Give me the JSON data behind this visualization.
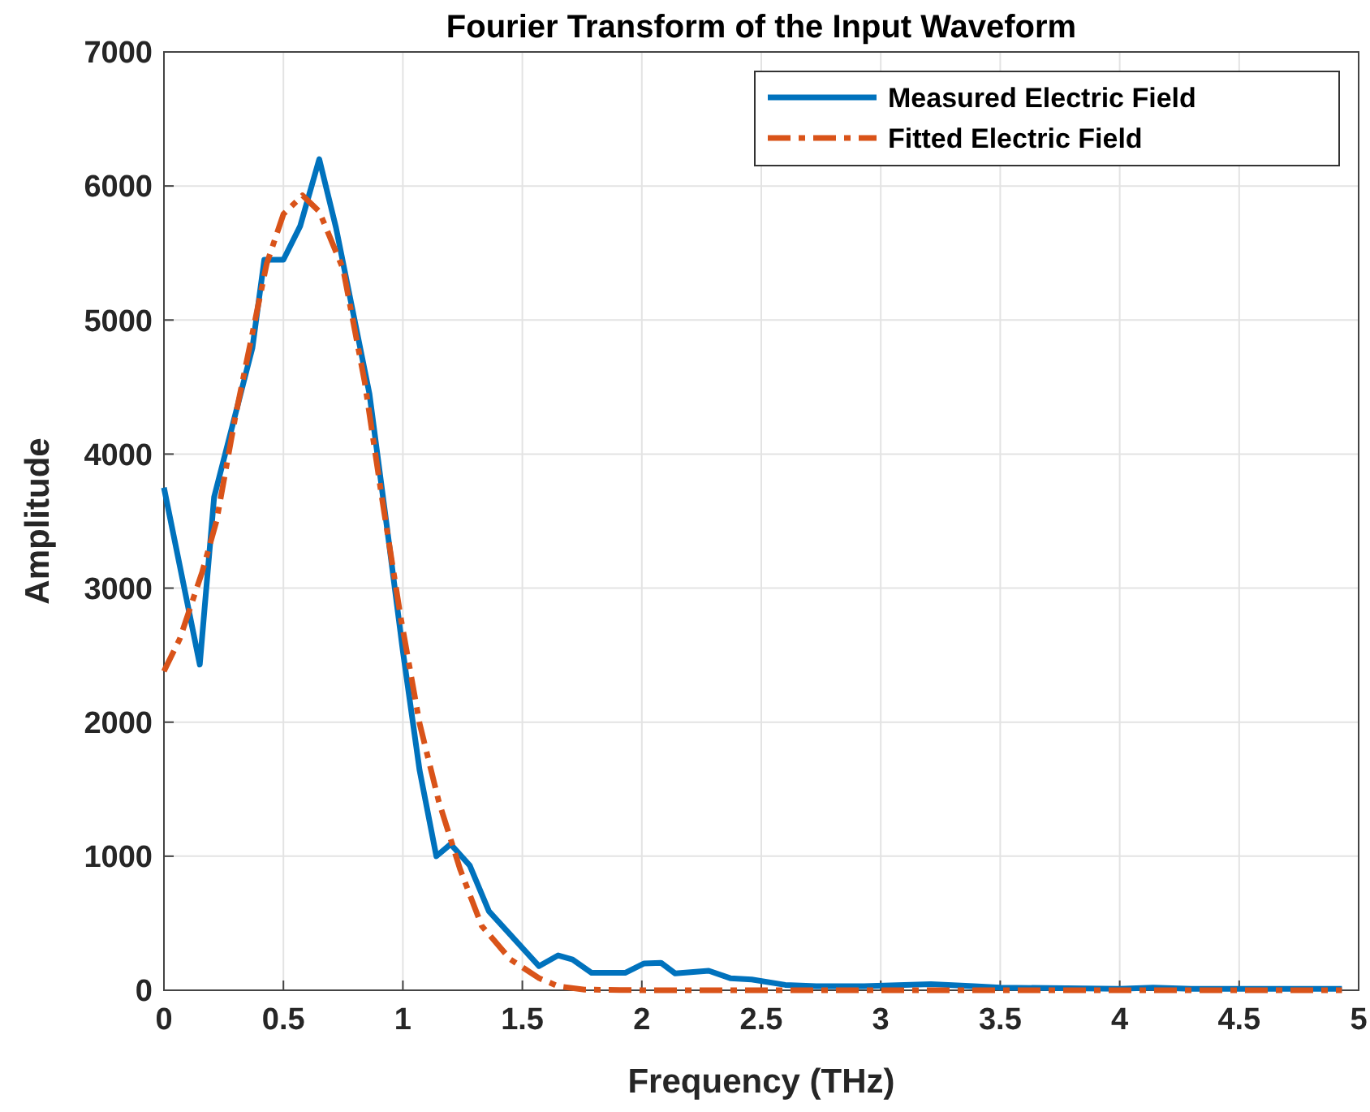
{
  "chart_data": {
    "type": "line",
    "title": "Fourier Transform of the Input Waveform",
    "xlabel": "Frequency (THz)",
    "ylabel": "Amplitude",
    "xlim": [
      0,
      5
    ],
    "xticks": [
      0,
      0.5,
      1,
      1.5,
      2,
      2.5,
      3,
      3.5,
      4,
      4.5,
      5
    ],
    "ylim": [
      0,
      7000
    ],
    "yticks": [
      0,
      1000,
      2000,
      3000,
      4000,
      5000,
      6000,
      7000
    ],
    "grid": true,
    "legend": "top right",
    "marker": "none",
    "series": [
      {
        "name": "Measured Electric Field",
        "color": "#0072bd",
        "line_style": "solid",
        "x": [
          0,
          0.15,
          0.21,
          0.37,
          0.42,
          0.5,
          0.57,
          0.65,
          0.72,
          0.86,
          0.93,
          1.0,
          1.07,
          1.14,
          1.2,
          1.28,
          1.36,
          1.57,
          1.65,
          1.71,
          1.79,
          1.93,
          2.01,
          2.08,
          2.14,
          2.28,
          2.37,
          2.46,
          2.6,
          2.73,
          2.93,
          3.21,
          3.39,
          3.5,
          4.0,
          4.14,
          4.3,
          4.93
        ],
        "values": [
          3750,
          2430,
          3680,
          4790,
          5450,
          5450,
          5700,
          6200,
          5690,
          4450,
          3500,
          2530,
          1640,
          1000,
          1090,
          930,
          590,
          180,
          260,
          230,
          130,
          130,
          200,
          205,
          125,
          145,
          90,
          80,
          40,
          30,
          30,
          45,
          30,
          20,
          10,
          20,
          10,
          10
        ]
      },
      {
        "name": "Fitted Electric Field",
        "color": "#d95319",
        "line_style": "dashed",
        "x": [
          0,
          0.066,
          0.16,
          0.22,
          0.3,
          0.43,
          0.5,
          0.58,
          0.65,
          0.75,
          0.84,
          0.91,
          0.99,
          1.07,
          1.15,
          1.24,
          1.33,
          1.45,
          1.57,
          1.65,
          1.76,
          2.0,
          3.0,
          4.0,
          4.93
        ],
        "values": [
          2380,
          2620,
          3120,
          3500,
          4290,
          5420,
          5790,
          5930,
          5810,
          5380,
          4540,
          3700,
          2790,
          1990,
          1410,
          900,
          480,
          230,
          90,
          30,
          5,
          0,
          0,
          0,
          0
        ]
      }
    ]
  }
}
